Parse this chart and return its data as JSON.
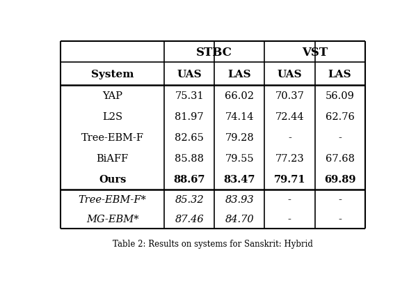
{
  "caption": "Table 2: Results on systems for Sanskrit: Hybrid",
  "rows": [
    {
      "system": "YAP",
      "stbc_uas": "75.31",
      "stbc_las": "66.02",
      "vst_uas": "70.37",
      "vst_las": "56.09",
      "bold": false,
      "italic": false
    },
    {
      "system": "L2S",
      "stbc_uas": "81.97",
      "stbc_las": "74.14",
      "vst_uas": "72.44",
      "vst_las": "62.76",
      "bold": false,
      "italic": false
    },
    {
      "system": "Tree-EBM-F",
      "stbc_uas": "82.65",
      "stbc_las": "79.28",
      "vst_uas": "-",
      "vst_las": "-",
      "bold": false,
      "italic": false
    },
    {
      "system": "BiAFF",
      "stbc_uas": "85.88",
      "stbc_las": "79.55",
      "vst_uas": "77.23",
      "vst_las": "67.68",
      "bold": false,
      "italic": false
    },
    {
      "system": "Ours",
      "stbc_uas": "88.67",
      "stbc_las": "83.47",
      "vst_uas": "79.71",
      "vst_las": "69.89",
      "bold": true,
      "italic": false
    }
  ],
  "rows_italic": [
    {
      "system": "Tree-EBM-F*",
      "stbc_uas": "85.32",
      "stbc_las": "83.93",
      "vst_uas": "-",
      "vst_las": "-",
      "bold": false,
      "italic": true
    },
    {
      "system": "MG-EBM*",
      "stbc_uas": "87.46",
      "stbc_las": "84.70",
      "vst_uas": "-",
      "vst_las": "-",
      "bold": false,
      "italic": true
    }
  ],
  "background_color": "#ffffff",
  "figsize": [
    5.88,
    4.1
  ],
  "dpi": 100
}
